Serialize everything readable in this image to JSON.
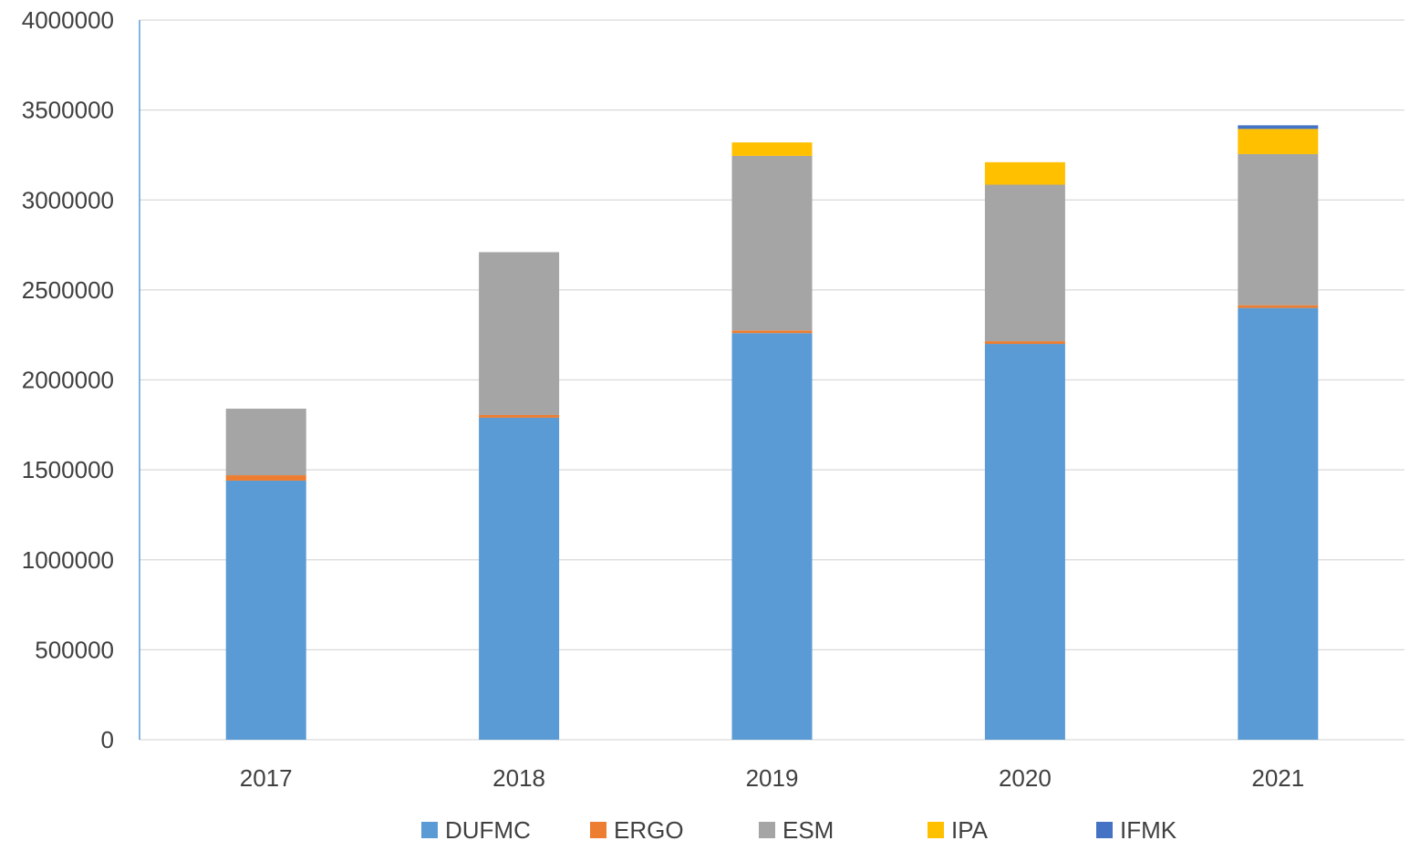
{
  "chart_data": {
    "type": "bar",
    "stacked": true,
    "categories": [
      "2017",
      "2018",
      "2019",
      "2020",
      "2021"
    ],
    "series": [
      {
        "name": "DUFMC",
        "color": "#5b9bd5",
        "values": [
          1440000,
          1790000,
          2260000,
          2200000,
          2400000
        ]
      },
      {
        "name": "ERGO",
        "color": "#ed7d31",
        "values": [
          30000,
          15000,
          15000,
          15000,
          15000
        ]
      },
      {
        "name": "ESM",
        "color": "#a5a5a5",
        "values": [
          370000,
          905000,
          970000,
          870000,
          840000
        ]
      },
      {
        "name": "IPA",
        "color": "#ffc000",
        "values": [
          0,
          0,
          75000,
          125000,
          140000
        ]
      },
      {
        "name": "IFMK",
        "color": "#4472c4",
        "values": [
          0,
          0,
          0,
          0,
          20000
        ]
      }
    ],
    "yticks": [
      "0",
      "500000",
      "1000000",
      "1500000",
      "2000000",
      "2500000",
      "3000000",
      "3500000",
      "4000000"
    ],
    "ylim": [
      0,
      4000000
    ],
    "grid": true,
    "legend": "bottom",
    "title": "",
    "xlabel": "",
    "ylabel": ""
  }
}
